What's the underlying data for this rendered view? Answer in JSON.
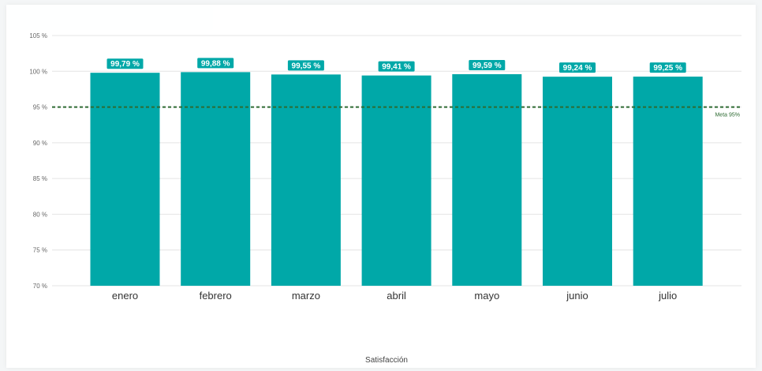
{
  "chart_data": {
    "type": "bar",
    "title": "",
    "xlabel": "Satisfacción",
    "ylabel": "",
    "categories": [
      "enero",
      "febrero",
      "marzo",
      "abril",
      "mayo",
      "junio",
      "julio"
    ],
    "values": [
      99.79,
      99.88,
      99.55,
      99.41,
      99.59,
      99.24,
      99.25
    ],
    "data_labels": [
      "99,79 %",
      "99,88 %",
      "99,55 %",
      "99,41 %",
      "99,59 %",
      "99,24 %",
      "99,25 %"
    ],
    "ylim": [
      70,
      105
    ],
    "yticks": [
      70,
      75,
      80,
      85,
      90,
      95,
      100,
      105
    ],
    "ytick_labels": [
      "70 %",
      "75 %",
      "80 %",
      "85 %",
      "90 %",
      "95 %",
      "100 %",
      "105 %"
    ],
    "grid": true,
    "reference_line": {
      "value": 95,
      "label": "Meta 95%",
      "color": "#2e6b33",
      "style": "dashed"
    },
    "bar_color": "#00a8a8",
    "label_bg_color": "#00a8a8"
  }
}
